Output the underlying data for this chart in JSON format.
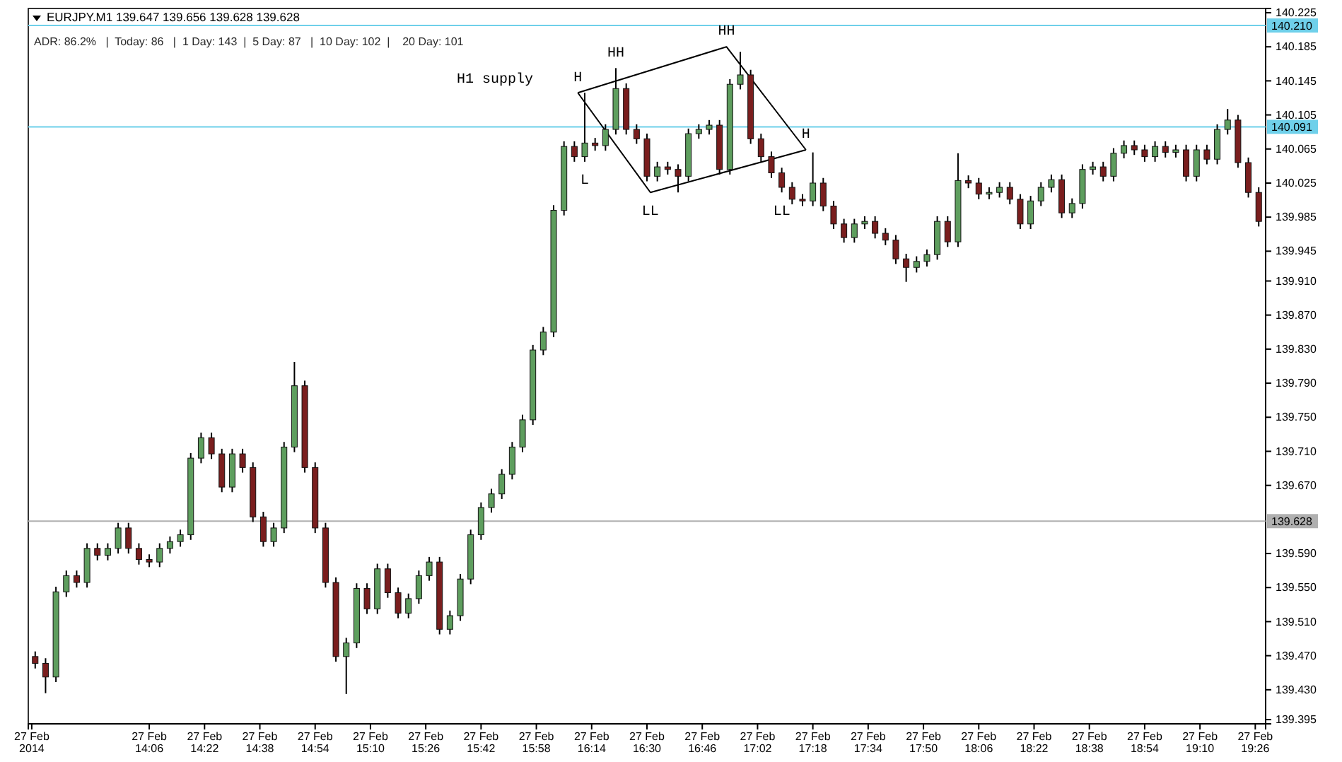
{
  "chart_data": {
    "type": "candlestick",
    "title": "EURJPY.M1  139.647 139.656 139.628 139.628",
    "subtitle": "ADR: 86.2%   |  Today: 86   |  1 Day: 143  |  5 Day: 87   |  10 Day: 102  |    20 Day: 101",
    "x": [
      "2014-02-27T13:33",
      "2014-02-27T13:36",
      "2014-02-27T13:39",
      "2014-02-27T13:42",
      "2014-02-27T13:45",
      "2014-02-27T13:48",
      "2014-02-27T13:51",
      "2014-02-27T13:54",
      "2014-02-27T13:57",
      "2014-02-27T14:00",
      "2014-02-27T14:03",
      "2014-02-27T14:06",
      "2014-02-27T14:09",
      "2014-02-27T14:12",
      "2014-02-27T14:15",
      "2014-02-27T14:18",
      "2014-02-27T14:21",
      "2014-02-27T14:24",
      "2014-02-27T14:27",
      "2014-02-27T14:30",
      "2014-02-27T14:33",
      "2014-02-27T14:36",
      "2014-02-27T14:39",
      "2014-02-27T14:42",
      "2014-02-27T14:45",
      "2014-02-27T14:48",
      "2014-02-27T14:51",
      "2014-02-27T14:54",
      "2014-02-27T14:57",
      "2014-02-27T15:00",
      "2014-02-27T15:03",
      "2014-02-27T15:06",
      "2014-02-27T15:09",
      "2014-02-27T15:12",
      "2014-02-27T15:15",
      "2014-02-27T15:18",
      "2014-02-27T15:21",
      "2014-02-27T15:24",
      "2014-02-27T15:27",
      "2014-02-27T15:30",
      "2014-02-27T15:33",
      "2014-02-27T15:36",
      "2014-02-27T15:39",
      "2014-02-27T15:42",
      "2014-02-27T15:45",
      "2014-02-27T15:48",
      "2014-02-27T15:51",
      "2014-02-27T15:54",
      "2014-02-27T15:57",
      "2014-02-27T16:00",
      "2014-02-27T16:03",
      "2014-02-27T16:06",
      "2014-02-27T16:09",
      "2014-02-27T16:12",
      "2014-02-27T16:15",
      "2014-02-27T16:18",
      "2014-02-27T16:21",
      "2014-02-27T16:24",
      "2014-02-27T16:27",
      "2014-02-27T16:30",
      "2014-02-27T16:33",
      "2014-02-27T16:36",
      "2014-02-27T16:39",
      "2014-02-27T16:42",
      "2014-02-27T16:45",
      "2014-02-27T16:48",
      "2014-02-27T16:51",
      "2014-02-27T16:54",
      "2014-02-27T16:57",
      "2014-02-27T17:00",
      "2014-02-27T17:03",
      "2014-02-27T17:06",
      "2014-02-27T17:09",
      "2014-02-27T17:12",
      "2014-02-27T17:15",
      "2014-02-27T17:18",
      "2014-02-27T17:21",
      "2014-02-27T17:24",
      "2014-02-27T17:27",
      "2014-02-27T17:30",
      "2014-02-27T17:33",
      "2014-02-27T17:36",
      "2014-02-27T17:39",
      "2014-02-27T17:42",
      "2014-02-27T17:45",
      "2014-02-27T17:48",
      "2014-02-27T17:51",
      "2014-02-27T17:54",
      "2014-02-27T17:57",
      "2014-02-27T18:00",
      "2014-02-27T18:03",
      "2014-02-27T18:06",
      "2014-02-27T18:09",
      "2014-02-27T18:12",
      "2014-02-27T18:15",
      "2014-02-27T18:18",
      "2014-02-27T18:21",
      "2014-02-27T18:24",
      "2014-02-27T18:27",
      "2014-02-27T18:30",
      "2014-02-27T18:33",
      "2014-02-27T18:36",
      "2014-02-27T18:39",
      "2014-02-27T18:42",
      "2014-02-27T18:45",
      "2014-02-27T18:48",
      "2014-02-27T18:51",
      "2014-02-27T18:54",
      "2014-02-27T18:57",
      "2014-02-27T19:00",
      "2014-02-27T19:03",
      "2014-02-27T19:06",
      "2014-02-27T19:09",
      "2014-02-27T19:12",
      "2014-02-27T19:15",
      "2014-02-27T19:18",
      "2014-02-27T19:21",
      "2014-02-27T19:24",
      "2014-02-27T19:27"
    ],
    "ohlc": [
      [
        139.469,
        139.475,
        139.455,
        139.461
      ],
      [
        139.461,
        139.467,
        139.426,
        139.445
      ],
      [
        139.445,
        139.551,
        139.439,
        139.545
      ],
      [
        139.545,
        139.57,
        139.539,
        139.564
      ],
      [
        139.564,
        139.57,
        139.55,
        139.556
      ],
      [
        139.556,
        139.602,
        139.55,
        139.596
      ],
      [
        139.596,
        139.602,
        139.582,
        139.588
      ],
      [
        139.588,
        139.602,
        139.582,
        139.596
      ],
      [
        139.596,
        139.626,
        139.59,
        139.62
      ],
      [
        139.62,
        139.626,
        139.59,
        139.596
      ],
      [
        139.596,
        139.602,
        139.577,
        139.583
      ],
      [
        139.583,
        139.589,
        139.574,
        139.58
      ],
      [
        139.58,
        139.602,
        139.574,
        139.596
      ],
      [
        139.596,
        139.61,
        139.59,
        139.604
      ],
      [
        139.604,
        139.618,
        139.598,
        139.612
      ],
      [
        139.612,
        139.708,
        139.606,
        139.702
      ],
      [
        139.702,
        139.732,
        139.696,
        139.726
      ],
      [
        139.726,
        139.732,
        139.701,
        139.707
      ],
      [
        139.707,
        139.713,
        139.662,
        139.668
      ],
      [
        139.668,
        139.713,
        139.662,
        139.707
      ],
      [
        139.707,
        139.713,
        139.685,
        139.691
      ],
      [
        139.691,
        139.697,
        139.627,
        139.633
      ],
      [
        139.633,
        139.639,
        139.598,
        139.604
      ],
      [
        139.604,
        139.626,
        139.598,
        139.62
      ],
      [
        139.62,
        139.721,
        139.614,
        139.715
      ],
      [
        139.715,
        139.815,
        139.709,
        139.787
      ],
      [
        139.787,
        139.793,
        139.685,
        139.691
      ],
      [
        139.691,
        139.697,
        139.614,
        139.62
      ],
      [
        139.62,
        139.626,
        139.55,
        139.556
      ],
      [
        139.556,
        139.562,
        139.463,
        139.469
      ],
      [
        139.469,
        139.491,
        139.425,
        139.485
      ],
      [
        139.485,
        139.555,
        139.479,
        139.549
      ],
      [
        139.549,
        139.555,
        139.519,
        139.525
      ],
      [
        139.525,
        139.578,
        139.519,
        139.572
      ],
      [
        139.572,
        139.578,
        139.538,
        139.544
      ],
      [
        139.544,
        139.55,
        139.514,
        139.52
      ],
      [
        139.52,
        139.543,
        139.514,
        139.537
      ],
      [
        139.537,
        139.57,
        139.531,
        139.564
      ],
      [
        139.564,
        139.586,
        139.558,
        139.58
      ],
      [
        139.58,
        139.586,
        139.495,
        139.501
      ],
      [
        139.501,
        139.523,
        139.495,
        139.517
      ],
      [
        139.517,
        139.566,
        139.511,
        139.56
      ],
      [
        139.56,
        139.618,
        139.554,
        139.612
      ],
      [
        139.612,
        139.65,
        139.606,
        139.644
      ],
      [
        139.644,
        139.666,
        139.638,
        139.66
      ],
      [
        139.66,
        139.689,
        139.654,
        139.683
      ],
      [
        139.683,
        139.721,
        139.677,
        139.715
      ],
      [
        139.715,
        139.753,
        139.709,
        139.747
      ],
      [
        139.747,
        139.835,
        139.741,
        139.829
      ],
      [
        139.829,
        139.856,
        139.823,
        139.85
      ],
      [
        139.85,
        139.999,
        139.844,
        139.993
      ],
      [
        139.993,
        140.074,
        139.987,
        140.068
      ],
      [
        140.068,
        140.074,
        140.05,
        140.056
      ],
      [
        140.056,
        140.131,
        140.05,
        140.072
      ],
      [
        140.072,
        140.078,
        140.063,
        140.069
      ],
      [
        140.069,
        140.094,
        140.063,
        140.088
      ],
      [
        140.088,
        140.16,
        140.082,
        140.136
      ],
      [
        140.136,
        140.142,
        140.082,
        140.088
      ],
      [
        140.088,
        140.094,
        140.071,
        140.077
      ],
      [
        140.077,
        140.083,
        140.027,
        140.033
      ],
      [
        140.033,
        140.05,
        140.027,
        140.044
      ],
      [
        140.044,
        140.05,
        140.035,
        140.041
      ],
      [
        140.041,
        140.047,
        140.014,
        140.033
      ],
      [
        140.033,
        140.089,
        140.027,
        140.083
      ],
      [
        140.083,
        140.094,
        140.077,
        140.088
      ],
      [
        140.088,
        140.099,
        140.082,
        140.093
      ],
      [
        140.093,
        140.099,
        140.035,
        140.041
      ],
      [
        140.041,
        140.147,
        140.035,
        140.141
      ],
      [
        140.141,
        140.179,
        140.135,
        140.152
      ],
      [
        140.152,
        140.158,
        140.071,
        140.077
      ],
      [
        140.077,
        140.083,
        140.05,
        140.056
      ],
      [
        140.056,
        140.062,
        140.031,
        140.037
      ],
      [
        140.037,
        140.043,
        140.014,
        140.02
      ],
      [
        140.02,
        140.026,
        140.0,
        140.006
      ],
      [
        140.006,
        140.012,
        139.998,
        140.004
      ],
      [
        140.004,
        140.061,
        139.998,
        140.025
      ],
      [
        140.025,
        140.031,
        139.992,
        139.998
      ],
      [
        139.998,
        140.004,
        139.971,
        139.977
      ],
      [
        139.977,
        139.983,
        139.955,
        139.961
      ],
      [
        139.961,
        139.983,
        139.955,
        139.977
      ],
      [
        139.977,
        139.986,
        139.971,
        139.98
      ],
      [
        139.98,
        139.986,
        139.96,
        139.966
      ],
      [
        139.966,
        139.972,
        139.952,
        139.958
      ],
      [
        139.958,
        139.964,
        139.93,
        139.936
      ],
      [
        139.936,
        139.942,
        139.909,
        139.926
      ],
      [
        139.926,
        139.939,
        139.92,
        139.933
      ],
      [
        139.933,
        139.947,
        139.927,
        139.941
      ],
      [
        139.941,
        139.986,
        139.935,
        139.98
      ],
      [
        139.98,
        139.986,
        139.95,
        139.956
      ],
      [
        139.956,
        140.06,
        139.95,
        140.028
      ],
      [
        140.028,
        140.034,
        140.019,
        140.025
      ],
      [
        140.025,
        140.031,
        140.006,
        140.012
      ],
      [
        140.012,
        140.02,
        140.006,
        140.014
      ],
      [
        140.014,
        140.026,
        140.008,
        140.02
      ],
      [
        140.02,
        140.026,
        140.0,
        140.006
      ],
      [
        140.006,
        140.012,
        139.971,
        139.977
      ],
      [
        139.977,
        140.01,
        139.971,
        140.004
      ],
      [
        140.004,
        140.026,
        139.998,
        140.02
      ],
      [
        140.02,
        140.035,
        140.014,
        140.029
      ],
      [
        140.029,
        140.035,
        139.984,
        139.99
      ],
      [
        139.99,
        140.007,
        139.984,
        140.001
      ],
      [
        140.001,
        140.047,
        139.995,
        140.041
      ],
      [
        140.041,
        140.05,
        140.035,
        140.044
      ],
      [
        140.044,
        140.05,
        140.027,
        140.033
      ],
      [
        140.033,
        140.066,
        140.027,
        140.06
      ],
      [
        140.06,
        140.075,
        140.054,
        140.069
      ],
      [
        140.069,
        140.075,
        140.058,
        140.064
      ],
      [
        140.064,
        140.07,
        140.05,
        140.056
      ],
      [
        140.056,
        140.074,
        140.05,
        140.068
      ],
      [
        140.068,
        140.074,
        140.055,
        140.061
      ],
      [
        140.061,
        140.07,
        140.055,
        140.064
      ],
      [
        140.064,
        140.07,
        140.027,
        140.033
      ],
      [
        140.033,
        140.07,
        140.027,
        140.064
      ],
      [
        140.064,
        140.07,
        140.047,
        140.053
      ],
      [
        140.053,
        140.094,
        140.047,
        140.088
      ],
      [
        140.088,
        140.112,
        140.082,
        140.099
      ],
      [
        140.099,
        140.105,
        140.043,
        140.049
      ],
      [
        140.049,
        140.055,
        140.008,
        140.014
      ],
      [
        140.014,
        140.02,
        139.974,
        139.98
      ]
    ],
    "series": [
      {
        "type": "line",
        "color": "#000000",
        "x": [
          "2014-02-27T16:10",
          "2014-02-27T16:53",
          "2014-02-27T17:16"
        ],
        "values": [
          140.131,
          140.185,
          140.064
        ]
      },
      {
        "type": "line",
        "color": "#000000",
        "x": [
          "2014-02-27T16:10",
          "2014-02-27T16:31",
          "2014-02-27T17:16"
        ],
        "values": [
          140.131,
          140.014,
          140.064
        ]
      }
    ],
    "xlim": [
      "2014-02-27T13:31",
      "2014-02-27T19:29"
    ],
    "ylim": [
      139.39,
      140.23
    ],
    "xticks": [
      {
        "value": "2014-02-27T13:32",
        "label": "27 Feb 2014"
      },
      {
        "value": "2014-02-27T14:06",
        "label": "27 Feb 14:06"
      },
      {
        "value": "2014-02-27T14:22",
        "label": "27 Feb 14:22"
      },
      {
        "value": "2014-02-27T14:38",
        "label": "27 Feb 14:38"
      },
      {
        "value": "2014-02-27T14:54",
        "label": "27 Feb 14:54"
      },
      {
        "value": "2014-02-27T15:10",
        "label": "27 Feb 15:10"
      },
      {
        "value": "2014-02-27T15:26",
        "label": "27 Feb 15:26"
      },
      {
        "value": "2014-02-27T15:42",
        "label": "27 Feb 15:42"
      },
      {
        "value": "2014-02-27T15:58",
        "label": "27 Feb 15:58"
      },
      {
        "value": "2014-02-27T16:14",
        "label": "27 Feb 16:14"
      },
      {
        "value": "2014-02-27T16:30",
        "label": "27 Feb 16:30"
      },
      {
        "value": "2014-02-27T16:46",
        "label": "27 Feb 16:46"
      },
      {
        "value": "2014-02-27T17:02",
        "label": "27 Feb 17:02"
      },
      {
        "value": "2014-02-27T17:18",
        "label": "27 Feb 17:18"
      },
      {
        "value": "2014-02-27T17:34",
        "label": "27 Feb 17:34"
      },
      {
        "value": "2014-02-27T17:50",
        "label": "27 Feb 17:50"
      },
      {
        "value": "2014-02-27T18:06",
        "label": "27 Feb 18:06"
      },
      {
        "value": "2014-02-27T18:22",
        "label": "27 Feb 18:22"
      },
      {
        "value": "2014-02-27T18:38",
        "label": "27 Feb 18:38"
      },
      {
        "value": "2014-02-27T18:54",
        "label": "27 Feb 18:54"
      },
      {
        "value": "2014-02-27T19:10",
        "label": "27 Feb 19:10"
      },
      {
        "value": "2014-02-27T19:26",
        "label": "27 Feb 19:26"
      }
    ],
    "yticks": [
      140.225,
      140.185,
      140.145,
      140.105,
      140.065,
      140.025,
      139.985,
      139.945,
      {
        "value": 139.91,
        "label": "139.910"
      },
      {
        "value": 139.87,
        "label": "139.870"
      },
      {
        "value": 139.83,
        "label": "139.830"
      },
      {
        "value": 139.79,
        "label": "139.790"
      },
      {
        "value": 139.75,
        "label": "139.750"
      },
      {
        "value": 139.71,
        "label": "139.710"
      },
      {
        "value": 139.67,
        "label": "139.670"
      },
      {
        "value": 139.59,
        "label": "139.590"
      },
      {
        "value": 139.55,
        "label": "139.550"
      },
      {
        "value": 139.51,
        "label": "139.510"
      },
      {
        "value": 139.47,
        "label": "139.470"
      },
      {
        "value": 139.43,
        "label": "139.430"
      },
      139.395
    ],
    "ref_lines": [
      {
        "axis": "y",
        "value": 140.21,
        "label": "140.210",
        "color": "#6fd0ea"
      },
      {
        "axis": "y",
        "value": 140.091,
        "label": "140.091",
        "color": "#6fd0ea"
      },
      {
        "axis": "y",
        "value": 139.628,
        "label": "139.628",
        "color": "#b0b0b0"
      }
    ],
    "annotations": [
      "H1 supply",
      {
        "text": "H",
        "x": "2014-02-27T16:10",
        "y": 140.131
      },
      {
        "text": "HH",
        "x": "2014-02-27T16:21",
        "y": 140.16
      },
      {
        "text": "HH",
        "x": "2014-02-27T16:53",
        "y": 140.185
      },
      {
        "text": "H",
        "x": "2014-02-27T17:16",
        "y": 140.064
      },
      {
        "text": "L",
        "x": "2014-02-27T16:12",
        "y": 140.05
      },
      {
        "text": "LL",
        "x": "2014-02-27T16:31",
        "y": 140.014
      },
      {
        "text": "LL",
        "x": "2014-02-27T17:09",
        "y": 140.014
      }
    ]
  }
}
